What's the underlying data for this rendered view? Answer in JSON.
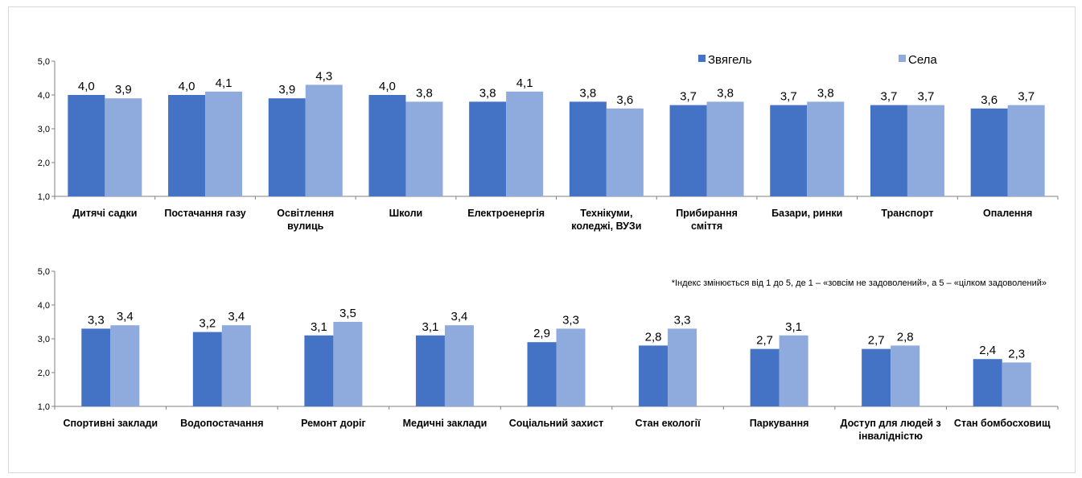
{
  "colors": {
    "zviahel": "#4472c4",
    "sela": "#8faadc",
    "axis": "#808080"
  },
  "legend": {
    "zviahel": "Звягель",
    "sela": "Села"
  },
  "note": "*Індекс змінюється від 1 до 5, де 1 – «зовсім не задоволений», а 5 – «цілком задоволений»",
  "chart_data": [
    {
      "type": "bar",
      "ylim": [
        1,
        5
      ],
      "y_ticks": [
        "1,0",
        "2,0",
        "3,0",
        "4,0",
        "5,0"
      ],
      "categories": [
        [
          "Дитячі садки"
        ],
        [
          "Постачання газу"
        ],
        [
          "Освітлення",
          "вулиць"
        ],
        [
          "Школи"
        ],
        [
          "Електроенергія"
        ],
        [
          "Технікуми,",
          "коледжі, ВУЗи"
        ],
        [
          "Прибирання",
          "сміття"
        ],
        [
          "Базари, ринки"
        ],
        [
          "Транспорт"
        ],
        [
          "Опалення"
        ]
      ],
      "series": [
        {
          "name": "Звягель",
          "values": [
            4.0,
            4.0,
            3.9,
            4.0,
            3.8,
            3.8,
            3.7,
            3.7,
            3.7,
            3.6
          ]
        },
        {
          "name": "Села",
          "values": [
            3.9,
            4.1,
            4.3,
            3.8,
            4.1,
            3.6,
            3.8,
            3.8,
            3.7,
            3.7
          ]
        }
      ]
    },
    {
      "type": "bar",
      "ylim": [
        1,
        5
      ],
      "y_ticks": [
        "1,0",
        "2,0",
        "3,0",
        "4,0",
        "5,0"
      ],
      "categories": [
        [
          "Спортивні заклади"
        ],
        [
          "Водопостачання"
        ],
        [
          "Ремонт доріг"
        ],
        [
          "Медичні заклади"
        ],
        [
          "Соціальний захист"
        ],
        [
          "Стан екології"
        ],
        [
          "Паркування"
        ],
        [
          "Доступ для людей з",
          "інвалідністю"
        ],
        [
          "Стан бомбосховищ"
        ]
      ],
      "series": [
        {
          "name": "Звягель",
          "values": [
            3.3,
            3.2,
            3.1,
            3.1,
            2.9,
            2.8,
            2.7,
            2.7,
            2.4
          ]
        },
        {
          "name": "Села",
          "values": [
            3.4,
            3.4,
            3.5,
            3.4,
            3.3,
            3.3,
            3.1,
            2.8,
            2.3
          ]
        }
      ]
    }
  ]
}
